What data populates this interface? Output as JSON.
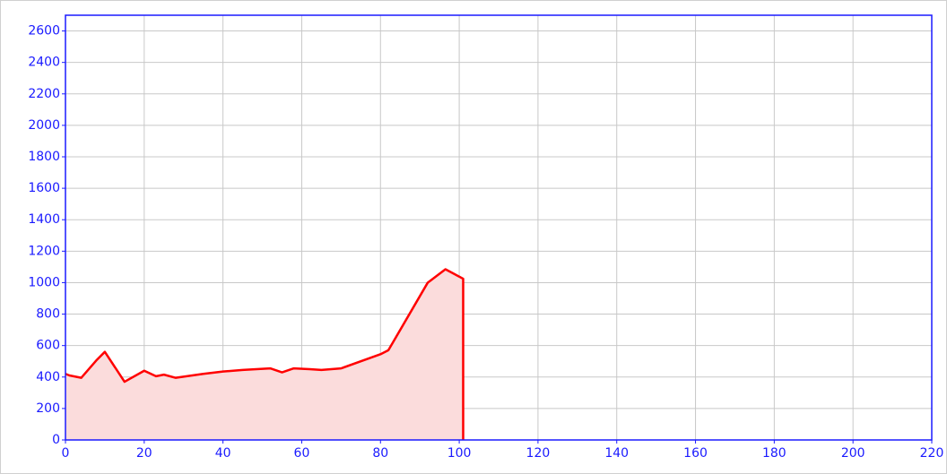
{
  "chart_data": {
    "type": "area",
    "x": [
      0,
      1,
      4,
      8,
      10,
      15,
      20,
      23,
      25,
      28,
      35,
      40,
      45,
      52,
      55,
      58,
      62,
      65,
      70,
      80,
      82,
      92,
      96.5,
      101,
      101
    ],
    "values": [
      420,
      410,
      395,
      510,
      560,
      370,
      440,
      405,
      415,
      395,
      420,
      435,
      445,
      455,
      430,
      455,
      450,
      445,
      455,
      545,
      570,
      1000,
      1085,
      1025,
      0
    ],
    "color": "#ff0000",
    "fill": "#fbdcdc",
    "axis_color": "#1a1aff",
    "xlim": [
      0,
      220
    ],
    "ylim": [
      0,
      2700
    ],
    "xticks": [
      0,
      20,
      40,
      60,
      80,
      100,
      120,
      140,
      160,
      180,
      200,
      220
    ],
    "yticks": [
      0,
      200,
      400,
      600,
      800,
      1000,
      1200,
      1400,
      1600,
      1800,
      2000,
      2200,
      2400,
      2600
    ],
    "grid": true
  }
}
